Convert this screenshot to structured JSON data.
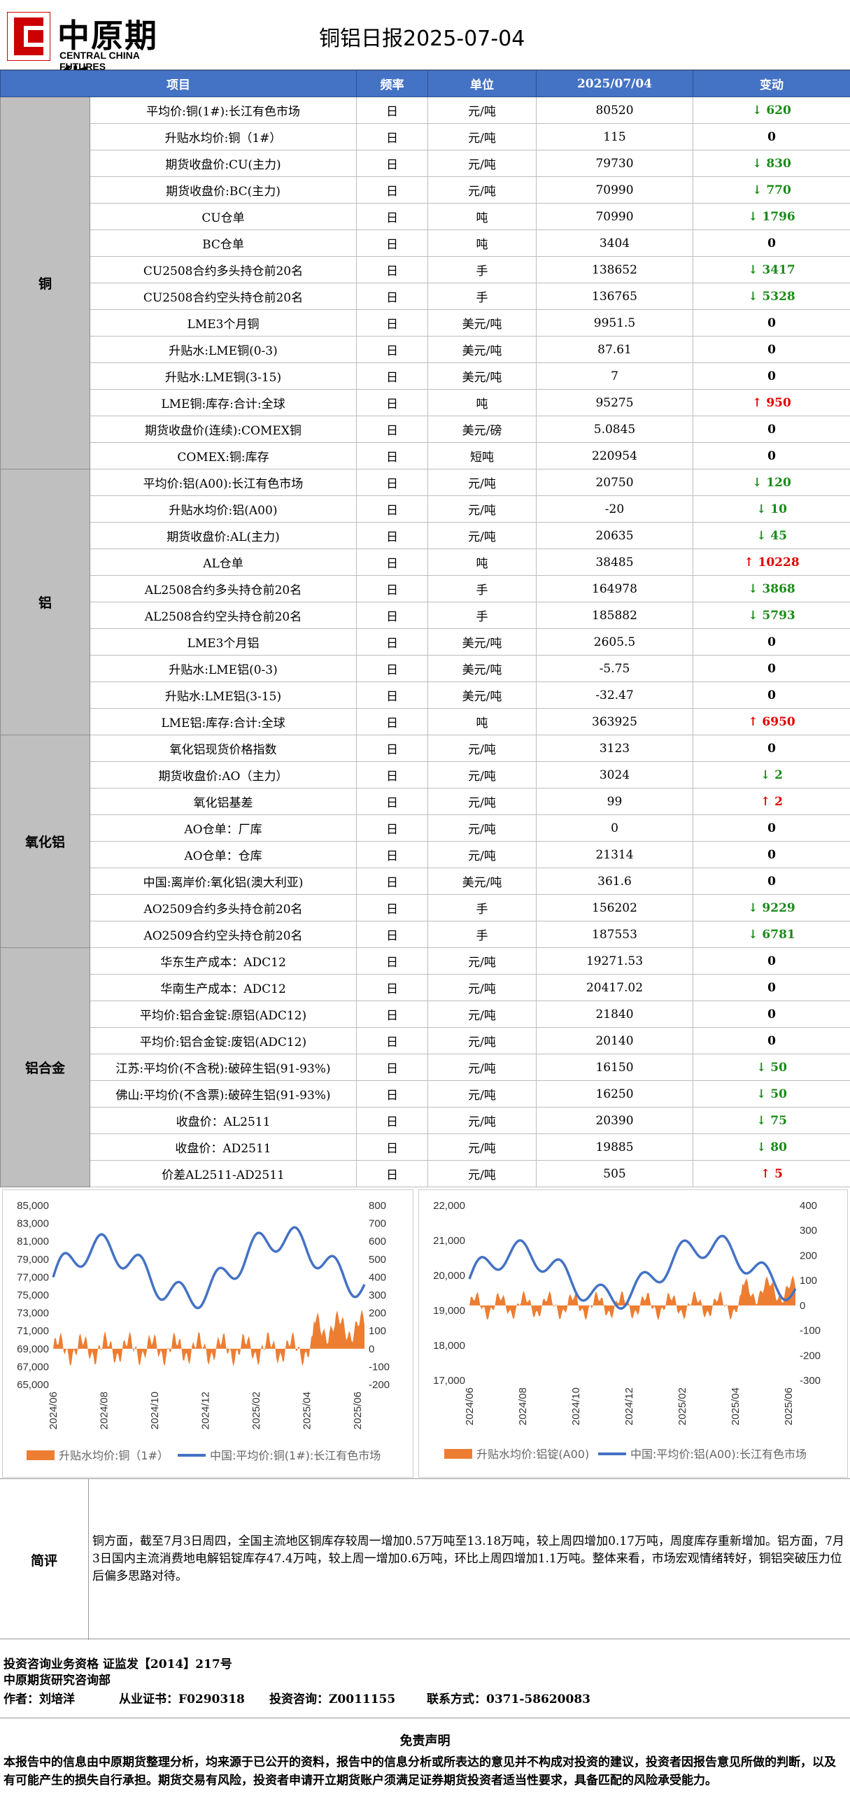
{
  "header": {
    "logo_cn": "中原期货",
    "logo_en": "CENTRAL CHINA FUTURES",
    "title": "铜铝日报2025-07-04"
  },
  "table": {
    "headers": [
      "项目",
      "频率",
      "单位",
      "2025/07/04",
      "变动"
    ],
    "groups": [
      {
        "name": "铜",
        "rows": [
          [
            "平均价:铜(1#):长江有色市场",
            "日",
            "元/吨",
            "80520",
            "down",
            "620"
          ],
          [
            "升贴水均价:铜（1#）",
            "日",
            "元/吨",
            "115",
            "zero",
            "0"
          ],
          [
            "期货收盘价:CU(主力)",
            "日",
            "元/吨",
            "79730",
            "down",
            "830"
          ],
          [
            "期货收盘价:BC(主力)",
            "日",
            "元/吨",
            "70990",
            "down",
            "770"
          ],
          [
            "CU仓单",
            "日",
            "吨",
            "70990",
            "down",
            "1796"
          ],
          [
            "BC仓单",
            "日",
            "吨",
            "3404",
            "zero",
            "0"
          ],
          [
            "CU2508合约多头持仓前20名",
            "日",
            "手",
            "138652",
            "down",
            "3417"
          ],
          [
            "CU2508合约空头持仓前20名",
            "日",
            "手",
            "136765",
            "down",
            "5328"
          ],
          [
            "LME3个月铜",
            "日",
            "美元/吨",
            "9951.5",
            "zero",
            "0"
          ],
          [
            "升贴水:LME铜(0-3)",
            "日",
            "美元/吨",
            "87.61",
            "zero",
            "0"
          ],
          [
            "升贴水:LME铜(3-15)",
            "日",
            "美元/吨",
            "7",
            "zero",
            "0"
          ],
          [
            "LME铜:库存:合计:全球",
            "日",
            "吨",
            "95275",
            "up",
            "950"
          ],
          [
            "期货收盘价(连续):COMEX铜",
            "日",
            "美元/磅",
            "5.0845",
            "zero",
            "0"
          ],
          [
            "COMEX:铜:库存",
            "日",
            "短吨",
            "220954",
            "zero",
            "0"
          ]
        ]
      },
      {
        "name": "铝",
        "rows": [
          [
            "平均价:铝(A00):长江有色市场",
            "日",
            "元/吨",
            "20750",
            "down",
            "120"
          ],
          [
            "升贴水均价:铝(A00)",
            "日",
            "元/吨",
            "-20",
            "down",
            "10"
          ],
          [
            "期货收盘价:AL(主力)",
            "日",
            "元/吨",
            "20635",
            "down",
            "45"
          ],
          [
            "AL仓单",
            "日",
            "吨",
            "38485",
            "up",
            "10228"
          ],
          [
            "AL2508合约多头持仓前20名",
            "日",
            "手",
            "164978",
            "down",
            "3868"
          ],
          [
            "AL2508合约空头持仓前20名",
            "日",
            "手",
            "185882",
            "down",
            "5793"
          ],
          [
            "LME3个月铝",
            "日",
            "美元/吨",
            "2605.5",
            "zero",
            "0"
          ],
          [
            "升贴水:LME铝(0-3)",
            "日",
            "美元/吨",
            "-5.75",
            "zero",
            "0"
          ],
          [
            "升贴水:LME铝(3-15)",
            "日",
            "美元/吨",
            "-32.47",
            "zero",
            "0"
          ],
          [
            "LME铝:库存:合计:全球",
            "日",
            "吨",
            "363925",
            "up",
            "6950"
          ]
        ]
      },
      {
        "name": "氧化铝",
        "rows": [
          [
            "氧化铝现货价格指数",
            "日",
            "元/吨",
            "3123",
            "zero",
            "0"
          ],
          [
            "期货收盘价:AO（主力）",
            "日",
            "元/吨",
            "3024",
            "down",
            "2"
          ],
          [
            "氧化铝基差",
            "日",
            "元/吨",
            "99",
            "up",
            "2"
          ],
          [
            "AO仓单：厂库",
            "日",
            "元/吨",
            "0",
            "zero",
            "0"
          ],
          [
            "AO仓单：仓库",
            "日",
            "元/吨",
            "21314",
            "zero",
            "0"
          ],
          [
            "中国:离岸价:氧化铝(澳大利亚)",
            "日",
            "美元/吨",
            "361.6",
            "zero",
            "0"
          ],
          [
            "AO2509合约多头持仓前20名",
            "日",
            "手",
            "156202",
            "down",
            "9229"
          ],
          [
            "AO2509合约空头持仓前20名",
            "日",
            "手",
            "187553",
            "down",
            "6781"
          ]
        ]
      },
      {
        "name": "铝合金",
        "rows": [
          [
            "华东生产成本：ADC12",
            "日",
            "元/吨",
            "19271.53",
            "zero",
            "0"
          ],
          [
            "华南生产成本：ADC12",
            "日",
            "元/吨",
            "20417.02",
            "zero",
            "0"
          ],
          [
            "平均价:铝合金锭:原铝(ADC12)",
            "日",
            "元/吨",
            "21840",
            "zero",
            "0"
          ],
          [
            "平均价:铝合金锭:废铝(ADC12)",
            "日",
            "元/吨",
            "20140",
            "zero",
            "0"
          ],
          [
            "江苏:平均价(不含税):破碎生铝(91-93%)",
            "日",
            "元/吨",
            "16150",
            "down",
            "50"
          ],
          [
            "佛山:平均价(不含票):破碎生铝(91-93%)",
            "日",
            "元/吨",
            "16250",
            "down",
            "50"
          ],
          [
            "收盘价：AL2511",
            "日",
            "元/吨",
            "20390",
            "down",
            "75"
          ],
          [
            "收盘价：AD2511",
            "日",
            "元/吨",
            "19885",
            "down",
            "80"
          ],
          [
            "价差AL2511-AD2511",
            "日",
            "元/吨",
            "505",
            "up",
            "5"
          ]
        ]
      }
    ]
  },
  "charts": [
    {
      "type": "area+line",
      "left_axis": {
        "ticks": [
          "85,000",
          "83,000",
          "81,000",
          "79,000",
          "77,000",
          "75,000",
          "73,000",
          "71,000",
          "69,000",
          "67,000",
          "65,000"
        ],
        "range": [
          65000,
          85000
        ]
      },
      "right_axis": {
        "ticks": [
          "800",
          "700",
          "600",
          "500",
          "400",
          "300",
          "200",
          "100",
          "0",
          "-100",
          "-200"
        ],
        "range": [
          -200,
          800
        ]
      },
      "x_ticks": [
        "2024/06",
        "2024/08",
        "2024/10",
        "2024/12",
        "2025/02",
        "2025/04",
        "2025/06"
      ],
      "legend": [
        "升贴水均价:铜（1#）",
        "中国:平均价:铜(1#):长江有色市场"
      ],
      "bar_color": "#ED7D31",
      "line_color": "#4472C4"
    },
    {
      "type": "area+line",
      "left_axis": {
        "ticks": [
          "22,000",
          "21,000",
          "20,000",
          "19,000",
          "18,000",
          "17,000"
        ],
        "range": [
          17000,
          22000
        ]
      },
      "right_axis": {
        "ticks": [
          "400",
          "300",
          "200",
          "100",
          "0",
          "-100",
          "-200",
          "-300"
        ],
        "range": [
          -300,
          400
        ]
      },
      "x_ticks": [
        "2024/06",
        "2024/08",
        "2024/10",
        "2024/12",
        "2025/02",
        "2025/04",
        "2025/06"
      ],
      "legend": [
        "升贴水均价:铝锭(A00)",
        "中国:平均价:铝(A00):长江有色市场"
      ],
      "bar_color": "#ED7D31",
      "line_color": "#4472C4"
    }
  ],
  "comment": {
    "label": "简评",
    "text": "铜方面，截至7月3日周四，全国主流地区铜库存较周一增加0.57万吨至13.18万吨，较上周四增加0.17万吨，周度库存重新增加。铝方面，7月3日国内主流消费地电解铝锭库存47.4万吨，较上周一增加0.6万吨，环比上周四增加1.1万吨。整体来看，市场宏观情绪转好，铜铝突破压力位后偏多思路对待。"
  },
  "info": {
    "line1": "投资咨询业务资格  证监发【2014】217号",
    "line2": "中原期货研究咨询部",
    "author": "作者：刘培洋",
    "license": "从业证书：F0290318",
    "consult": "投资咨询：Z0011155",
    "contact": "联系方式：0371-58620083"
  },
  "disclaimer": {
    "title": "免责声明",
    "text": "本报告中的信息由中原期货整理分析，均来源于已公开的资料，报告中的信息分析或所表达的意见并不构成对投资的建议，投资者因报告意见所做的判断，以及有可能产生的损失自行承担。期货交易有风险，投资者申请开立期货账户须满足证券期货投资者适当性要求，具备匹配的风险承受能力。"
  }
}
